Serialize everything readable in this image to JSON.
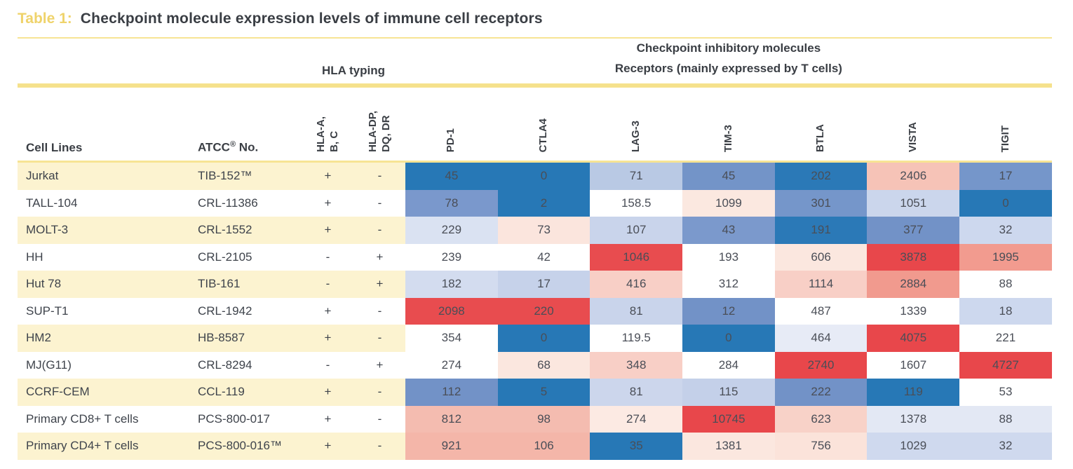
{
  "title": {
    "label": "Table 1:",
    "text": "Checkpoint molecule expression levels of immune cell receptors"
  },
  "group_headers": {
    "hla": "HLA typing",
    "checkpoint_line1": "Checkpoint inhibitory molecules",
    "checkpoint_line2": "Receptors (mainly expressed by T cells)"
  },
  "columns": {
    "cell_lines": "Cell Lines",
    "atcc_prefix": "ATCC",
    "atcc_sup": "®",
    "atcc_suffix": " No.",
    "hla": [
      "HLA-A,\nB, C",
      "HLA-DP,\nDQ, DR"
    ],
    "receptors": [
      "PD-1",
      "CTLA4",
      "LAG-3",
      "TIM-3",
      "BTLA",
      "VISTA",
      "TIGIT"
    ]
  },
  "colors": {
    "accent_gold": "#efd36b",
    "rule_gold": "#f5e18c",
    "row_band_yellow": "#fcf3d0",
    "heat_dark_blue": "#2778b6",
    "heat_red": "#e8474b"
  },
  "rows": [
    {
      "cell_line": "Jurkat",
      "atcc": "TIB-152™",
      "hla_abc": "+",
      "hla_dpdqdr": "-",
      "values": [
        "45",
        "0",
        "71",
        "45",
        "202",
        "2406",
        "17"
      ],
      "colors": [
        "#2778b6",
        "#2778b6",
        "#b9c9e4",
        "#7394c8",
        "#2b79b7",
        "#f6c3b7",
        "#7596ca"
      ]
    },
    {
      "cell_line": "TALL-104",
      "atcc": "CRL-11386",
      "hla_abc": "+",
      "hla_dpdqdr": "-",
      "values": [
        "78",
        "2",
        "158.5",
        "1099",
        "301",
        "1051",
        "0"
      ],
      "colors": [
        "#7a98cc",
        "#2778b6",
        "#ffffff",
        "#fbe8e0",
        "#7596ca",
        "#cbd6ec",
        "#2778b6"
      ]
    },
    {
      "cell_line": "MOLT-3",
      "atcc": "CRL-1552",
      "hla_abc": "+",
      "hla_dpdqdr": "-",
      "values": [
        "229",
        "73",
        "107",
        "43",
        "191",
        "377",
        "32"
      ],
      "colors": [
        "#dae2f2",
        "#fbe5dd",
        "#c9d4eb",
        "#7b99cc",
        "#2b79b7",
        "#7292c7",
        "#cdd8ee"
      ]
    },
    {
      "cell_line": "HH",
      "atcc": "CRL-2105",
      "hla_abc": "-",
      "hla_dpdqdr": "+",
      "values": [
        "239",
        "42",
        "1046",
        "193",
        "606",
        "3878",
        "1995"
      ],
      "colors": [
        "#ffffff",
        "#ffffff",
        "#e84c4f",
        "#ffffff",
        "#fbe7df",
        "#e8474b",
        "#f29b8f"
      ]
    },
    {
      "cell_line": "Hut 78",
      "atcc": "TIB-161",
      "hla_abc": "-",
      "hla_dpdqdr": "+",
      "values": [
        "182",
        "17",
        "416",
        "312",
        "1114",
        "2884",
        "88"
      ],
      "colors": [
        "#d3dcef",
        "#c6d2ea",
        "#f8cfc6",
        "#ffffff",
        "#f8cfc6",
        "#f19a8e",
        "#ffffff"
      ]
    },
    {
      "cell_line": "SUP-T1",
      "atcc": "CRL-1942",
      "hla_abc": "+",
      "hla_dpdqdr": "-",
      "values": [
        "2098",
        "220",
        "81",
        "12",
        "487",
        "1339",
        "18"
      ],
      "colors": [
        "#e84c4f",
        "#e84c4f",
        "#c9d4eb",
        "#7292c7",
        "#ffffff",
        "#ffffff",
        "#cdd8ee"
      ]
    },
    {
      "cell_line": "HM2",
      "atcc": "HB-8587",
      "hla_abc": "+",
      "hla_dpdqdr": "-",
      "values": [
        "354",
        "0",
        "119.5",
        "0",
        "464",
        "4075",
        "221"
      ],
      "colors": [
        "#ffffff",
        "#2778b6",
        "#ffffff",
        "#2778b6",
        "#e7ebf6",
        "#e8474b",
        "#ffffff"
      ]
    },
    {
      "cell_line": "MJ(G11)",
      "atcc": "CRL-8294",
      "hla_abc": "-",
      "hla_dpdqdr": "+",
      "values": [
        "274",
        "68",
        "348",
        "284",
        "2740",
        "1607",
        "4727"
      ],
      "colors": [
        "#ffffff",
        "#fbe7df",
        "#f8cfc6",
        "#ffffff",
        "#e8474b",
        "#ffffff",
        "#e8474b"
      ]
    },
    {
      "cell_line": "CCRF-CEM",
      "atcc": "CCL-119",
      "hla_abc": "+",
      "hla_dpdqdr": "-",
      "values": [
        "112",
        "5",
        "81",
        "115",
        "222",
        "119",
        "53"
      ],
      "colors": [
        "#7292c7",
        "#2778b6",
        "#ccd6ec",
        "#c4d0e9",
        "#7292c7",
        "#2778b6",
        "#ffffff"
      ]
    },
    {
      "cell_line": "Primary CD8+ T cells",
      "atcc": "PCS-800-017",
      "hla_abc": "+",
      "hla_dpdqdr": "-",
      "values": [
        "812",
        "98",
        "274",
        "10745",
        "623",
        "1378",
        "88"
      ],
      "colors": [
        "#f4bcb0",
        "#f4bcb0",
        "#fceae3",
        "#e8474b",
        "#f8d2c8",
        "#e3e8f4",
        "#e3e8f4"
      ]
    },
    {
      "cell_line": "Primary CD4+ T cells",
      "atcc": "PCS-800-016™",
      "hla_abc": "+",
      "hla_dpdqdr": "-",
      "values": [
        "921",
        "106",
        "35",
        "1381",
        "756",
        "1029",
        "32"
      ],
      "colors": [
        "#f4b6a9",
        "#f4b6a9",
        "#2778b6",
        "#fbe7df",
        "#fbe3da",
        "#cfd9ee",
        "#cfd9ee"
      ]
    }
  ]
}
